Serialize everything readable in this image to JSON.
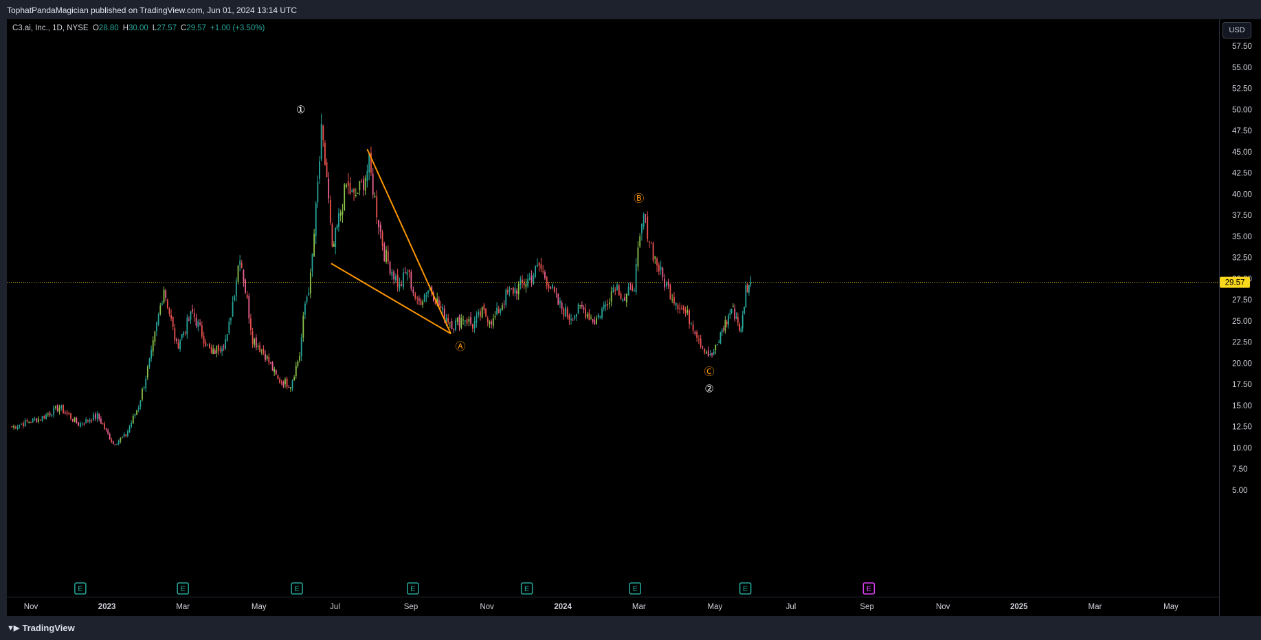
{
  "header": {
    "published_text": "TophatPandaMagician published on TradingView.com, Jun 01, 2024 13:14 UTC"
  },
  "legend": {
    "symbol": "C3.ai, Inc., 1D, NYSE",
    "open_label": "O",
    "open_value": "28.80",
    "high_label": "H",
    "high_value": "30.00",
    "low_label": "L",
    "low_value": "27.57",
    "close_label": "C",
    "close_value": "29.57",
    "change": "+1.00 (+3.50%)"
  },
  "currency_button": "USD",
  "footer": {
    "brand": "TradingView"
  },
  "colors": {
    "up": "#26a69a",
    "down": "#ef5350",
    "up_alt": "#8bc34a",
    "down_alt": "#f06292",
    "wave_orange": "#ff9800",
    "wave_white": "#ffffff",
    "price_line": "#f9d71c",
    "earnings": "#26a69a",
    "earnings_future": "#e040fb"
  },
  "chart_data": {
    "type": "candlestick",
    "symbol": "C3.ai, Inc.",
    "interval": "1D",
    "exchange": "NYSE",
    "ylim": [
      3.5,
      60
    ],
    "y_ticks": [
      "5.00",
      "7.50",
      "10.00",
      "12.50",
      "15.00",
      "17.50",
      "20.00",
      "22.50",
      "25.00",
      "27.50",
      "30.00",
      "32.50",
      "35.00",
      "37.50",
      "40.00",
      "42.50",
      "45.00",
      "47.50",
      "50.00",
      "52.50",
      "55.00",
      "57.50"
    ],
    "x_ticks": [
      "Nov",
      "2023",
      "Mar",
      "May",
      "Jul",
      "Sep",
      "Nov",
      "2024",
      "Mar",
      "May",
      "Jul",
      "Sep",
      "Nov",
      "2025",
      "Mar",
      "May"
    ],
    "x_ticks_bold": [
      "2023",
      "2024",
      "2025"
    ],
    "last_price": "29.57",
    "price_path": [
      {
        "date": "Oct 2022",
        "price": 12.5
      },
      {
        "date": "Nov 2022",
        "price": 13.5
      },
      {
        "date": "Nov 2022",
        "price": 14.8
      },
      {
        "date": "Dec 2022",
        "price": 12.8
      },
      {
        "date": "Dec 2022",
        "price": 13.8
      },
      {
        "date": "Jan 2023",
        "price": 10.5
      },
      {
        "date": "Jan 2023",
        "price": 11.5
      },
      {
        "date": "Jan 2023",
        "price": 15.0
      },
      {
        "date": "Feb 2023",
        "price": 21.0
      },
      {
        "date": "Feb 2023",
        "price": 29.0
      },
      {
        "date": "Feb 2023",
        "price": 22.0
      },
      {
        "date": "Mar 2023",
        "price": 26.0
      },
      {
        "date": "Mar 2023",
        "price": 21.0
      },
      {
        "date": "Apr 2023",
        "price": 23.0
      },
      {
        "date": "Apr 2023",
        "price": 33.0
      },
      {
        "date": "Apr 2023",
        "price": 23.0
      },
      {
        "date": "May 2023",
        "price": 21.0
      },
      {
        "date": "May 2023",
        "price": 18.0
      },
      {
        "date": "May 2023",
        "price": 17.5
      },
      {
        "date": "Jun 2023",
        "price": 21.0
      },
      {
        "date": "Jun 2023",
        "price": 27.0
      },
      {
        "date": "Jun 2023",
        "price": 30.0
      },
      {
        "date": "Jun 2023",
        "price": 38.0
      },
      {
        "date": "Jun 2023",
        "price": 47.0
      },
      {
        "date": "Jun 2023",
        "price": 42.0
      },
      {
        "date": "Jun 2023",
        "price": 33.0
      },
      {
        "date": "Jul 2023",
        "price": 37.0
      },
      {
        "date": "Jul 2023",
        "price": 41.0
      },
      {
        "date": "Jul 2023",
        "price": 39.5
      },
      {
        "date": "Jul 2023",
        "price": 41.0
      },
      {
        "date": "Jul 2023",
        "price": 43.5
      },
      {
        "date": "Aug 2023",
        "price": 38.0
      },
      {
        "date": "Aug 2023",
        "price": 33.0
      },
      {
        "date": "Aug 2023",
        "price": 31.0
      },
      {
        "date": "Aug 2023",
        "price": 29.0
      },
      {
        "date": "Aug 2023",
        "price": 31.0
      },
      {
        "date": "Sep 2023",
        "price": 27.0
      },
      {
        "date": "Sep 2023",
        "price": 29.0
      },
      {
        "date": "Sep 2023",
        "price": 26.0
      },
      {
        "date": "Oct 2023",
        "price": 24.5
      },
      {
        "date": "Oct 2023",
        "price": 25.5
      },
      {
        "date": "Oct 2023",
        "price": 24.5
      },
      {
        "date": "Oct 2023",
        "price": 26.0
      },
      {
        "date": "Nov 2023",
        "price": 25.0
      },
      {
        "date": "Nov 2023",
        "price": 28.0
      },
      {
        "date": "Nov 2023",
        "price": 29.0
      },
      {
        "date": "Dec 2023",
        "price": 30.0
      },
      {
        "date": "Dec 2023",
        "price": 31.5
      },
      {
        "date": "Dec 2023",
        "price": 29.5
      },
      {
        "date": "Dec 2023",
        "price": 27.0
      },
      {
        "date": "Jan 2024",
        "price": 25.5
      },
      {
        "date": "Jan 2024",
        "price": 26.5
      },
      {
        "date": "Jan 2024",
        "price": 25.0
      },
      {
        "date": "Feb 2024",
        "price": 27.0
      },
      {
        "date": "Feb 2024",
        "price": 29.5
      },
      {
        "date": "Feb 2024",
        "price": 27.5
      },
      {
        "date": "Feb 2024",
        "price": 29.5
      },
      {
        "date": "Mar 2024",
        "price": 37.5
      },
      {
        "date": "Mar 2024",
        "price": 33.0
      },
      {
        "date": "Mar 2024",
        "price": 30.0
      },
      {
        "date": "Mar 2024",
        "price": 28.0
      },
      {
        "date": "Apr 2024",
        "price": 26.5
      },
      {
        "date": "Apr 2024",
        "price": 25.0
      },
      {
        "date": "Apr 2024",
        "price": 22.5
      },
      {
        "date": "Apr 2024",
        "price": 20.7
      },
      {
        "date": "May 2024",
        "price": 22.0
      },
      {
        "date": "May 2024",
        "price": 24.0
      },
      {
        "date": "May 2024",
        "price": 25.0
      },
      {
        "date": "May 2024",
        "price": 26.5
      },
      {
        "date": "May 2024",
        "price": 25.5
      },
      {
        "date": "May 2024",
        "price": 23.7
      },
      {
        "date": "May 2024",
        "price": 28.8
      },
      {
        "date": "May 2024",
        "price": 29.57
      }
    ],
    "wave_labels": [
      {
        "text": "①",
        "date": "Jun 2023",
        "price": 50.0,
        "color": "#ffffff"
      },
      {
        "text": "Ⓐ",
        "date": "Oct 2023",
        "price": 22.0,
        "color": "#ff9800"
      },
      {
        "text": "Ⓑ",
        "date": "Mar 2024",
        "price": 39.5,
        "color": "#ff9800"
      },
      {
        "text": "Ⓒ",
        "date": "Apr 2024",
        "price": 19.0,
        "color": "#ff9800"
      },
      {
        "text": "②",
        "date": "Apr 2024",
        "price": 17.0,
        "color": "#ffffff"
      }
    ],
    "trendlines": [
      {
        "from": {
          "date": "Jul 2023",
          "price": 45.3
        },
        "to": {
          "date": "Oct 2023",
          "price": 23.5
        },
        "color": "#ff9800"
      },
      {
        "from": {
          "date": "Jun 2023",
          "price": 31.8
        },
        "to": {
          "date": "Oct 2023",
          "price": 23.5
        },
        "color": "#ff9800"
      }
    ],
    "earnings_markers": [
      {
        "label": "E",
        "date": "Dec 2022",
        "future": false
      },
      {
        "label": "E",
        "date": "Mar 2023",
        "future": false
      },
      {
        "label": "E",
        "date": "Jun 2023",
        "future": false
      },
      {
        "label": "E",
        "date": "Sep 2023",
        "future": false
      },
      {
        "label": "E",
        "date": "Dec 2023",
        "future": false
      },
      {
        "label": "E",
        "date": "Feb 2024",
        "future": false
      },
      {
        "label": "E",
        "date": "May 2024",
        "future": false
      },
      {
        "label": "E",
        "date": "Sep 2024",
        "future": true
      }
    ]
  }
}
